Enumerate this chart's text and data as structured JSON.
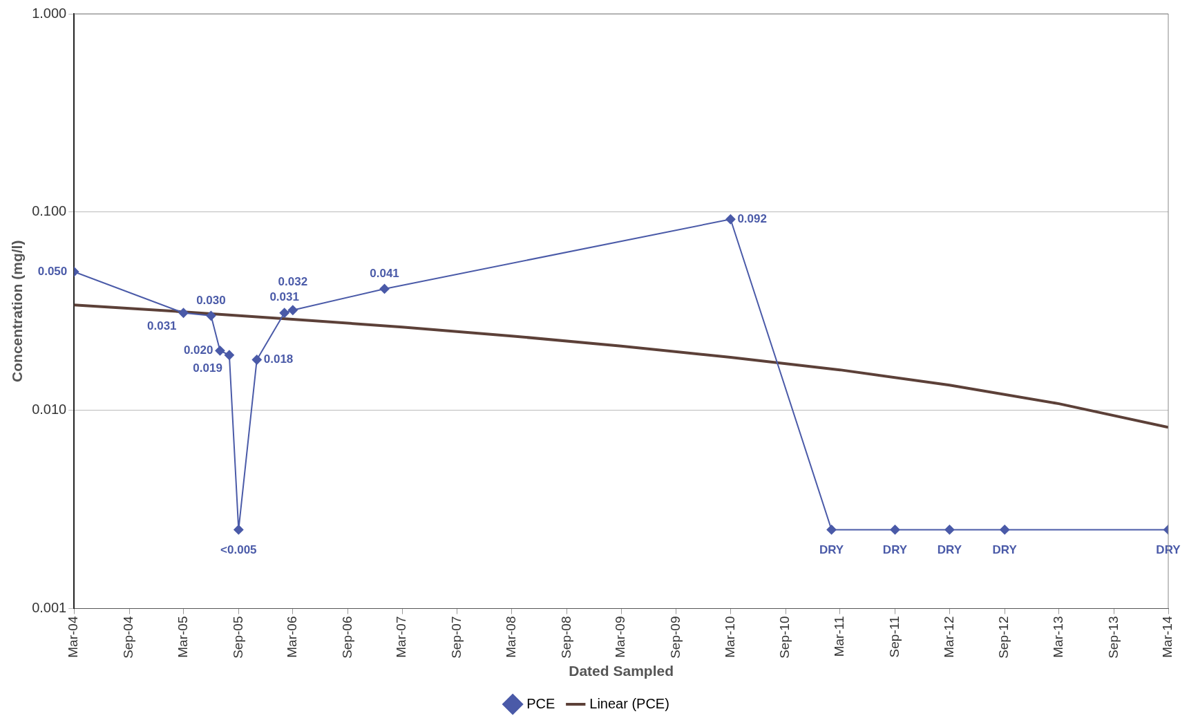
{
  "chart_data": {
    "type": "line",
    "xlabel": "Dated Sampled",
    "ylabel": "Concentration (mg/l)",
    "log": "y",
    "ylim": [
      0.001,
      1
    ],
    "yticks": [
      {
        "value": 0.001,
        "label": "0.001"
      },
      {
        "value": 0.01,
        "label": "0.010"
      },
      {
        "value": 0.1,
        "label": "0.100"
      },
      {
        "value": 1,
        "label": "1.000"
      }
    ],
    "xlim": [
      "2004-03",
      "2014-03"
    ],
    "xticks": [
      {
        "value": "2004-03",
        "label": "Mar-04"
      },
      {
        "value": "2004-09",
        "label": "Sep-04"
      },
      {
        "value": "2005-03",
        "label": "Mar-05"
      },
      {
        "value": "2005-09",
        "label": "Sep-05"
      },
      {
        "value": "2006-03",
        "label": "Mar-06"
      },
      {
        "value": "2006-09",
        "label": "Sep-06"
      },
      {
        "value": "2007-03",
        "label": "Mar-07"
      },
      {
        "value": "2007-09",
        "label": "Sep-07"
      },
      {
        "value": "2008-03",
        "label": "Mar-08"
      },
      {
        "value": "2008-09",
        "label": "Sep-08"
      },
      {
        "value": "2009-03",
        "label": "Mar-09"
      },
      {
        "value": "2009-09",
        "label": "Sep-09"
      },
      {
        "value": "2010-03",
        "label": "Mar-10"
      },
      {
        "value": "2010-09",
        "label": "Sep-10"
      },
      {
        "value": "2011-03",
        "label": "Mar-11"
      },
      {
        "value": "2011-09",
        "label": "Sep-11"
      },
      {
        "value": "2012-03",
        "label": "Mar-12"
      },
      {
        "value": "2012-09",
        "label": "Sep-12"
      },
      {
        "value": "2013-03",
        "label": "Mar-13"
      },
      {
        "value": "2013-09",
        "label": "Sep-13"
      },
      {
        "value": "2014-03",
        "label": "Mar-14"
      }
    ],
    "grid": "y",
    "legend": "bottom",
    "series": [
      {
        "name": "PCE",
        "color": "#4a5aa8",
        "marker": "diamond",
        "line_style": "solid",
        "x": [
          "2004-03",
          "2005-03",
          "2005-06",
          "2005-07",
          "2005-08",
          "2005-09",
          "2005-11",
          "2006-02",
          "2006-03",
          "2007-01",
          "2010-03",
          "2011-02",
          "2011-09",
          "2012-03",
          "2012-09",
          "2014-03"
        ],
        "values": [
          0.05,
          0.031,
          0.03,
          0.02,
          0.019,
          0.0025,
          0.018,
          0.031,
          0.032,
          0.041,
          0.092,
          0.0025,
          0.0025,
          0.0025,
          0.0025,
          0.0025
        ],
        "value_labels": [
          "0.050",
          "0.031",
          "0.030",
          "0.020",
          "0.019",
          "<0.005",
          "0.018",
          "0.031",
          "0.032",
          "0.041",
          "0.092",
          "DRY",
          "DRY",
          "DRY",
          "DRY",
          "DRY"
        ]
      },
      {
        "name": "Linear (PCE)",
        "type": "line",
        "color": "#5c4038",
        "marker": "none",
        "line_style": "solid",
        "x": [
          "2004-03",
          "2005-03",
          "2006-03",
          "2007-03",
          "2008-03",
          "2009-03",
          "2010-03",
          "2011-03",
          "2012-03",
          "2013-03",
          "2014-03"
        ],
        "values": [
          0.034,
          0.0314,
          0.0288,
          0.0263,
          0.0237,
          0.0211,
          0.0185,
          0.016,
          0.0134,
          0.0108,
          0.0082
        ]
      }
    ]
  }
}
